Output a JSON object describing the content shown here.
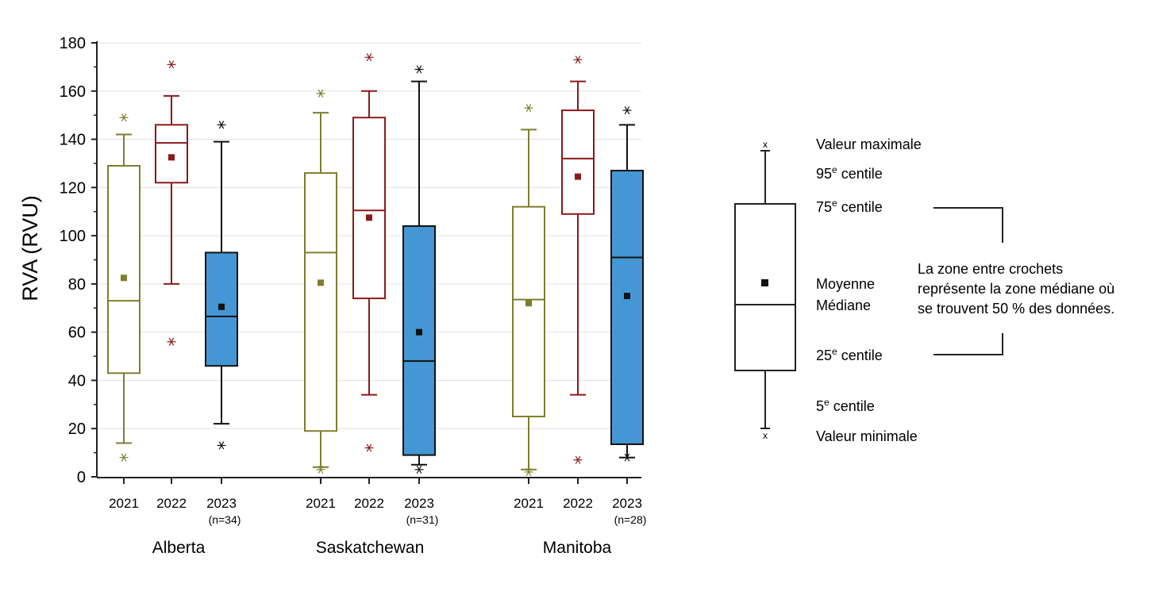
{
  "chart_data": {
    "type": "boxplot",
    "ylabel": "RVA (RVU)",
    "ylim": [
      0,
      180
    ],
    "yticks": [
      0,
      20,
      40,
      60,
      80,
      100,
      120,
      140,
      160,
      180
    ],
    "grid": true,
    "series_colors": {
      "2021": "#7e7e2e",
      "2022": "#8b1a1a",
      "2023": "#4497d4"
    },
    "groups": [
      {
        "label": "Alberta",
        "boxes": [
          {
            "year": "2021",
            "n_label": "",
            "min": 8,
            "p5": 14,
            "q1": 43,
            "median": 73,
            "mean": 82.5,
            "q3": 129,
            "p95": 142,
            "max": 149
          },
          {
            "year": "2022",
            "n_label": "",
            "min": 56,
            "p5": 80,
            "q1": 122,
            "median": 138.5,
            "mean": 132.5,
            "q3": 146,
            "p95": 158,
            "max": 171
          },
          {
            "year": "2023",
            "n_label": "(n=34)",
            "min": 13,
            "p5": 22,
            "q1": 46,
            "median": 66.5,
            "mean": 70.5,
            "q3": 93,
            "p95": 139,
            "max": 146
          }
        ]
      },
      {
        "label": "Saskatchewan",
        "boxes": [
          {
            "year": "2021",
            "n_label": "",
            "min": 3,
            "p5": 4,
            "q1": 19,
            "median": 93,
            "mean": 80.5,
            "q3": 126,
            "p95": 151,
            "max": 159
          },
          {
            "year": "2022",
            "n_label": "",
            "min": 12,
            "p5": 34,
            "q1": 74,
            "median": 110.5,
            "mean": 107.5,
            "q3": 149,
            "p95": 160,
            "max": 174
          },
          {
            "year": "2023",
            "n_label": "(n=31)",
            "min": 3,
            "p5": 5,
            "q1": 9,
            "median": 48,
            "mean": 60,
            "q3": 104,
            "p95": 164,
            "max": 169
          }
        ]
      },
      {
        "label": "Manitoba",
        "boxes": [
          {
            "year": "2021",
            "n_label": "",
            "min": 2,
            "p5": 3,
            "q1": 25,
            "median": 73.5,
            "mean": 72,
            "q3": 112,
            "p95": 144,
            "max": 153
          },
          {
            "year": "2022",
            "n_label": "",
            "min": 7,
            "p5": 34,
            "q1": 109,
            "median": 132,
            "mean": 124.5,
            "q3": 152,
            "p95": 164,
            "max": 173
          },
          {
            "year": "2023",
            "n_label": "(n=28)",
            "min": 8,
            "p5": 8,
            "q1": 13.5,
            "median": 91,
            "mean": 75,
            "q3": 127,
            "p95": 146,
            "max": 152
          }
        ]
      }
    ]
  },
  "legend": {
    "max_label": "Valeur maximale",
    "p95_label": "95",
    "p75_label": "75",
    "p25_label": "25",
    "p5_label": "5",
    "centile_sup": "e",
    "centile_word": " centile",
    "mean_label": "Moyenne",
    "median_label": "Médiane",
    "min_label": "Valeur minimale",
    "bracket_note": [
      "La zone entre crochets",
      "représente la zone médiane où",
      "se trouvent 50 % des données."
    ]
  }
}
